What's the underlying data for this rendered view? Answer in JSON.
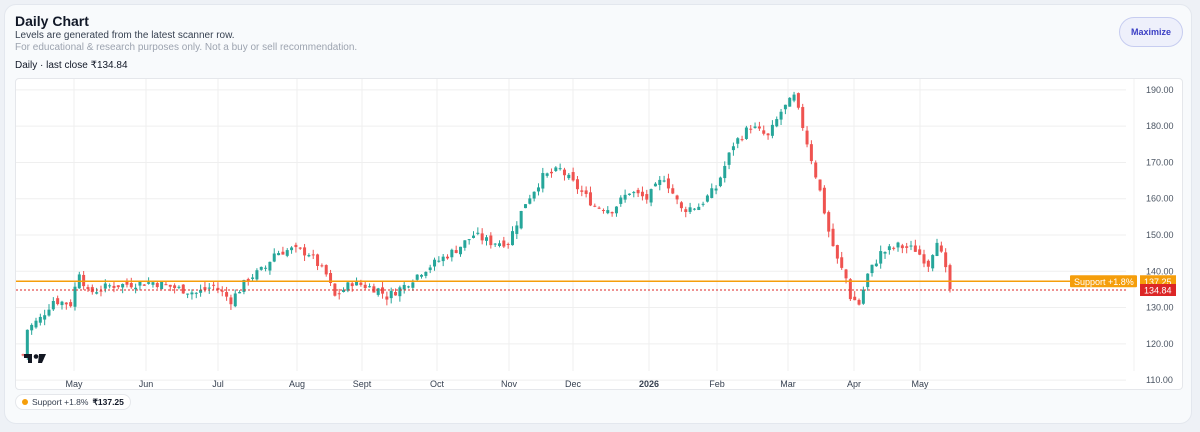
{
  "header": {
    "title": "Daily Chart",
    "subtitle": "Levels are generated from the latest scanner row.",
    "disclaimer": "For educational & research purposes only. Not a buy or sell recommendation.",
    "meta": "Daily · last close ₹134.84",
    "maximize_label": "Maximize"
  },
  "legend": {
    "label": "Support +1.8%",
    "value": "₹137.25"
  },
  "colors": {
    "up": "#26a69a",
    "down": "#ef5350",
    "support": "#f59e0b",
    "close": "#dc2626"
  },
  "chart_data": {
    "type": "candlestick",
    "x_labels": [
      "May",
      "Jun",
      "Jul",
      "Aug",
      "Sept",
      "Oct",
      "Nov",
      "Dec",
      "2026",
      "Feb",
      "Mar",
      "Apr",
      "May"
    ],
    "y_ticks": [
      "190.00",
      "180.00",
      "170.00",
      "160.00",
      "150.00",
      "140.00",
      "130.00",
      "120.00",
      "110.00"
    ],
    "ylim": [
      107,
      193
    ],
    "close_trend": [
      [
        0,
        117
      ],
      [
        1,
        124
      ],
      [
        4,
        127
      ],
      [
        7,
        132
      ],
      [
        11,
        131
      ],
      [
        13,
        140
      ],
      [
        15,
        134
      ],
      [
        20,
        136
      ],
      [
        30,
        137
      ],
      [
        40,
        134
      ],
      [
        44,
        136
      ],
      [
        48,
        132
      ],
      [
        52,
        138
      ],
      [
        56,
        141
      ],
      [
        58,
        145
      ],
      [
        62,
        146
      ],
      [
        66,
        145
      ],
      [
        70,
        139
      ],
      [
        72,
        133
      ],
      [
        76,
        137
      ],
      [
        82,
        135
      ],
      [
        84,
        133
      ],
      [
        88,
        136
      ],
      [
        92,
        140
      ],
      [
        96,
        143
      ],
      [
        100,
        146
      ],
      [
        104,
        150
      ],
      [
        108,
        148
      ],
      [
        112,
        148
      ],
      [
        116,
        159
      ],
      [
        120,
        166
      ],
      [
        124,
        168
      ],
      [
        128,
        163
      ],
      [
        132,
        158
      ],
      [
        136,
        157
      ],
      [
        140,
        162
      ],
      [
        144,
        160
      ],
      [
        148,
        166
      ],
      [
        152,
        157
      ],
      [
        156,
        158
      ],
      [
        160,
        163
      ],
      [
        164,
        175
      ],
      [
        168,
        180
      ],
      [
        172,
        177
      ],
      [
        175,
        184
      ],
      [
        178,
        188
      ],
      [
        180,
        180
      ],
      [
        182,
        171
      ],
      [
        184,
        162
      ],
      [
        186,
        151
      ],
      [
        188,
        143
      ],
      [
        190,
        138
      ],
      [
        191,
        133
      ],
      [
        193,
        131
      ],
      [
        195,
        139
      ],
      [
        198,
        145
      ],
      [
        202,
        147
      ],
      [
        206,
        146
      ],
      [
        209,
        142
      ],
      [
        211,
        149
      ],
      [
        213,
        140
      ],
      [
        214,
        135
      ]
    ],
    "support": {
      "label": "Support +1.8%",
      "value": 137.25,
      "tag": "137.25"
    },
    "last_close": {
      "value": 134.84,
      "tag": "134.84"
    }
  }
}
